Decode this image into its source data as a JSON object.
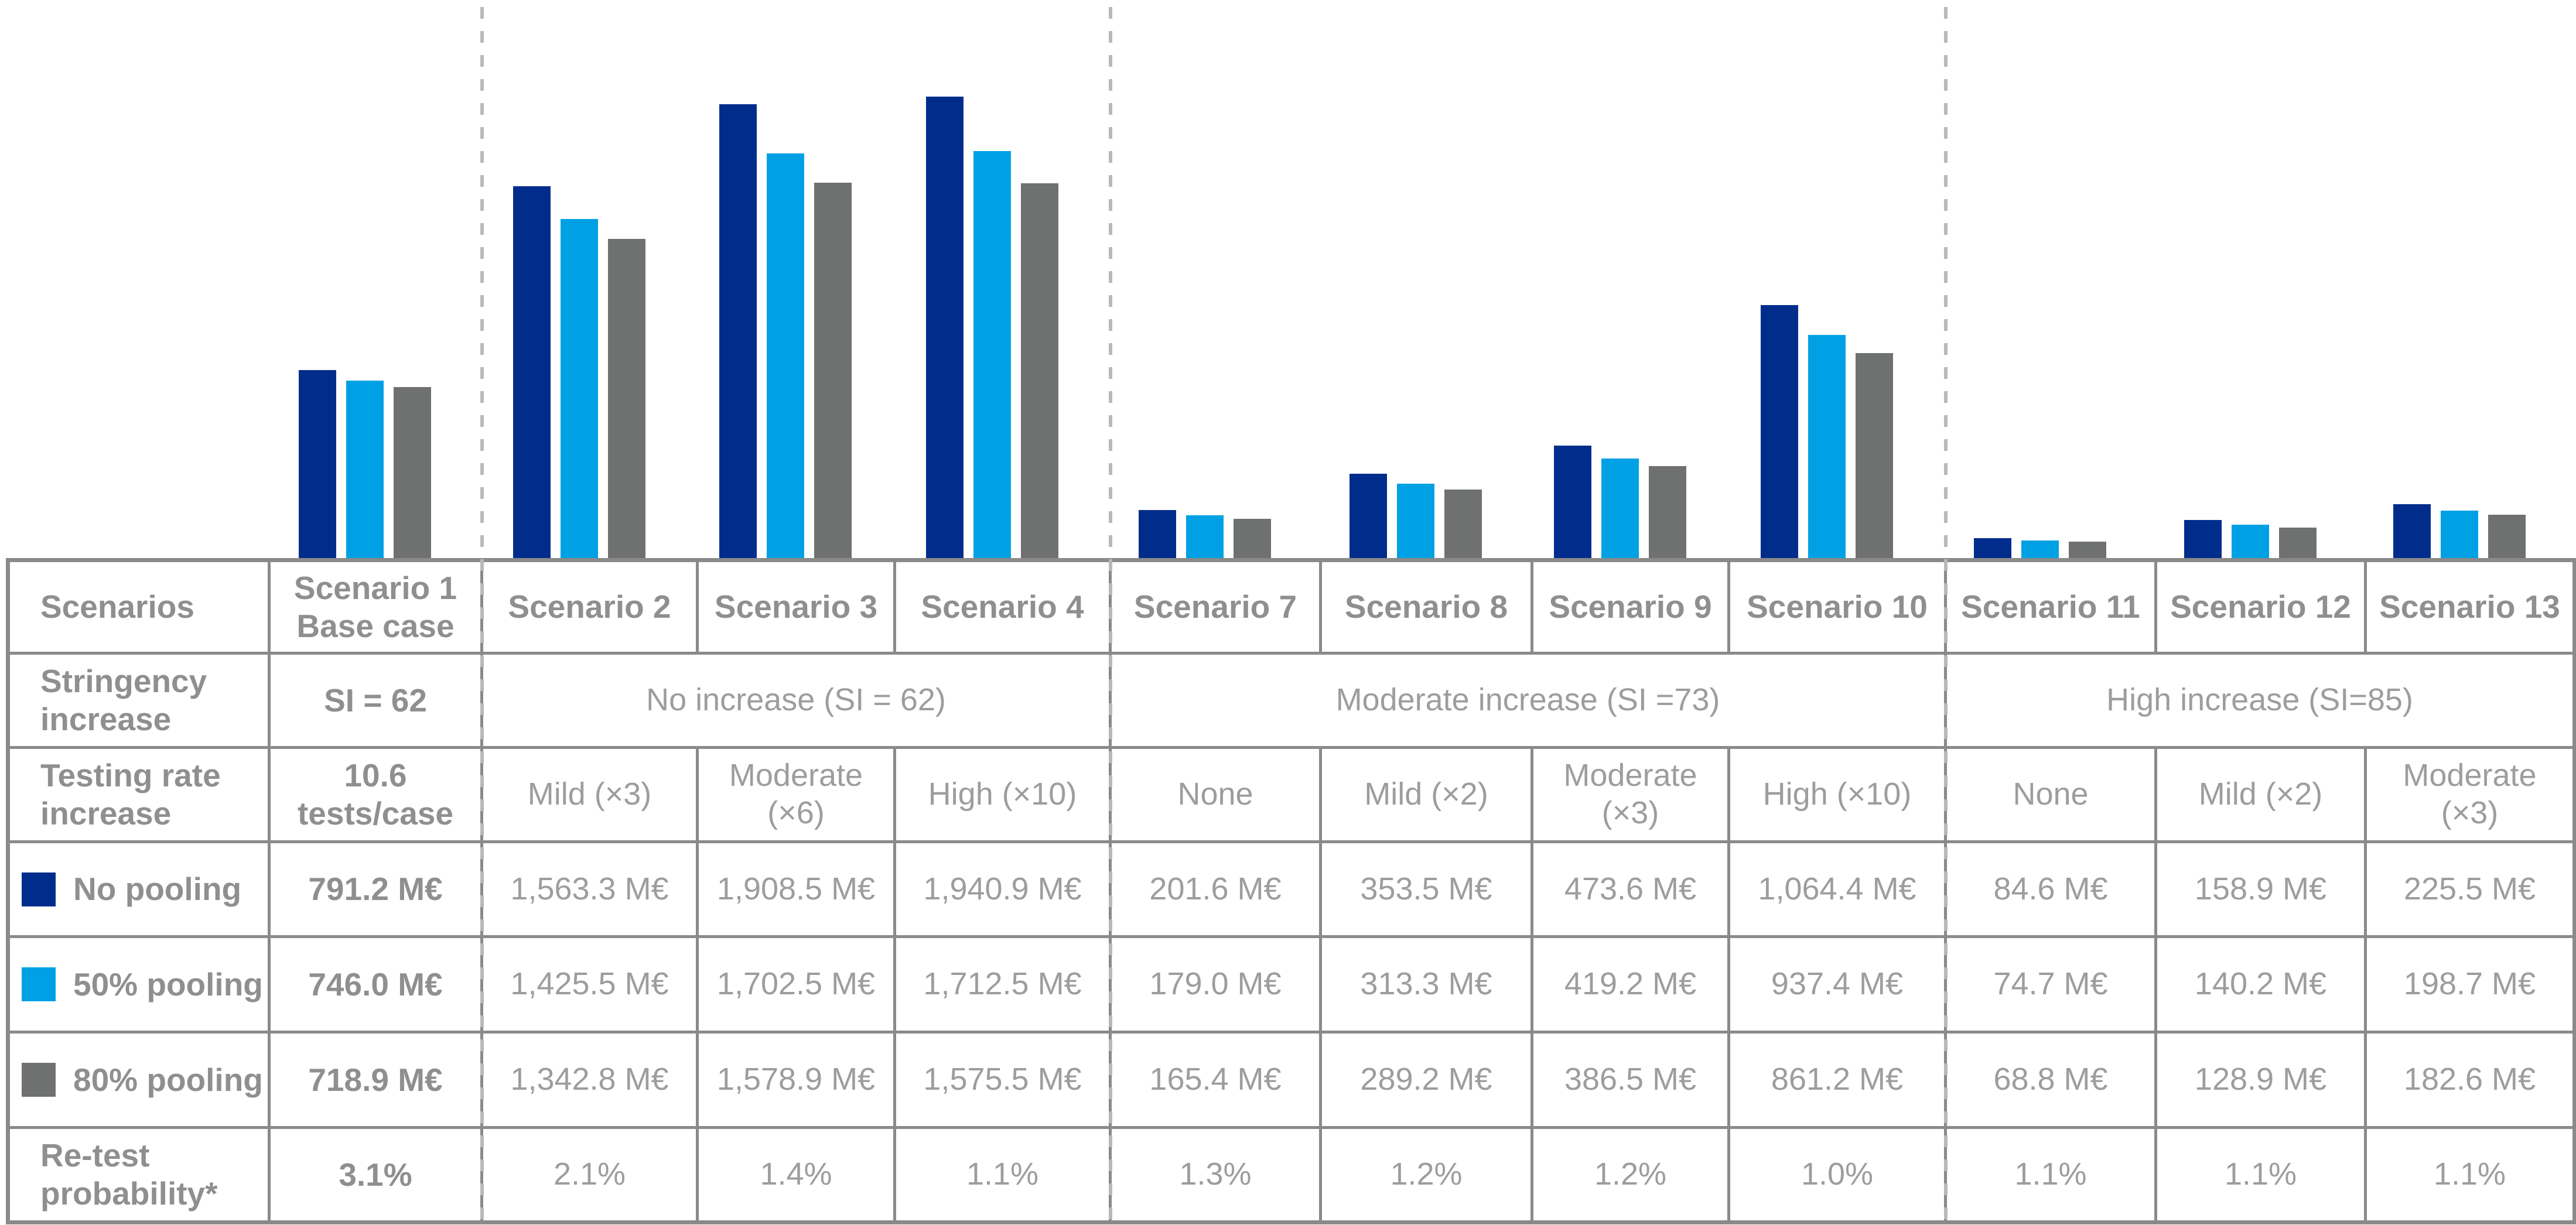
{
  "colors": {
    "navy": "#002D8C",
    "light_blue": "#00A1E4",
    "gray": "#6E7170",
    "grid_line": "#8A8A8A",
    "dashed_separator": "#B9B9B9",
    "text_bold": "#8F8F8F",
    "text_regular": "#9D9D9D"
  },
  "chart_data": {
    "type": "bar",
    "title": "",
    "xlabel": "",
    "ylabel": "",
    "unit": "M€",
    "axes_hidden": true,
    "grid": false,
    "legend_position": "table-left-column",
    "ylim": [
      0,
      1940.9
    ],
    "categories": [
      "Scenario 1",
      "Scenario 2",
      "Scenario 3",
      "Scenario 4",
      "Scenario 7",
      "Scenario 8",
      "Scenario 9",
      "Scenario 10",
      "Scenario 11",
      "Scenario 12",
      "Scenario 13"
    ],
    "series": [
      {
        "name": "No pooling",
        "color": "#002D8C",
        "values": [
          791.2,
          1563.3,
          1908.5,
          1940.9,
          201.6,
          353.5,
          473.6,
          1064.4,
          84.6,
          158.9,
          225.5
        ]
      },
      {
        "name": "50% pooling",
        "color": "#00A1E4",
        "values": [
          746.0,
          1425.5,
          1702.5,
          1712.5,
          179.0,
          313.3,
          419.2,
          937.4,
          74.7,
          140.2,
          198.7
        ]
      },
      {
        "name": "80% pooling",
        "color": "#6E7170",
        "values": [
          718.9,
          1342.8,
          1578.9,
          1575.5,
          165.4,
          289.2,
          386.5,
          861.2,
          68.8,
          128.9,
          182.6
        ]
      }
    ],
    "group_separators_after_categories": [
      "Scenario 1",
      "Scenario 4",
      "Scenario 10"
    ]
  },
  "table": {
    "rows": [
      {
        "name": "scenarios-header",
        "label": "Scenarios",
        "header": true,
        "cells": [
          {
            "text": "Scenario 1\nBase case",
            "bold": true
          },
          {
            "text": "Scenario 2",
            "bold": true
          },
          {
            "text": "Scenario 3",
            "bold": true
          },
          {
            "text": "Scenario 4",
            "bold": true
          },
          {
            "text": "Scenario 7",
            "bold": true
          },
          {
            "text": "Scenario 8",
            "bold": true
          },
          {
            "text": "Scenario 9",
            "bold": true
          },
          {
            "text": "Scenario 10",
            "bold": true
          },
          {
            "text": "Scenario 11",
            "bold": true
          },
          {
            "text": "Scenario 12",
            "bold": true
          },
          {
            "text": "Scenario 13",
            "bold": true
          }
        ]
      },
      {
        "name": "stringency-increase",
        "label": "Stringency\nincrease",
        "cells": [
          {
            "text": "SI = 62",
            "bold": true
          },
          {
            "text": "No increase (SI = 62)",
            "span": 3
          },
          {
            "text": "Moderate increase (SI =73)",
            "span": 4
          },
          {
            "text": "High increase (SI=85)",
            "span": 3
          }
        ]
      },
      {
        "name": "testing-rate-increase",
        "label": "Testing rate\nincrease",
        "cells": [
          {
            "text": "10.6\ntests/case",
            "bold": true
          },
          {
            "text": "Mild (×3)"
          },
          {
            "text": "Moderate\n(×6)"
          },
          {
            "text": "High (×10)"
          },
          {
            "text": "None"
          },
          {
            "text": "Mild (×2)"
          },
          {
            "text": "Moderate\n(×3)"
          },
          {
            "text": "High (×10)"
          },
          {
            "text": "None"
          },
          {
            "text": "Mild (×2)"
          },
          {
            "text": "Moderate\n(×3)"
          }
        ]
      },
      {
        "name": "no-pooling",
        "label": "No pooling",
        "swatch": "#002D8C",
        "cells": [
          {
            "text": "791.2 M€",
            "bold": true
          },
          {
            "text": "1,563.3 M€"
          },
          {
            "text": "1,908.5 M€"
          },
          {
            "text": "1,940.9 M€"
          },
          {
            "text": "201.6 M€"
          },
          {
            "text": "353.5 M€"
          },
          {
            "text": "473.6 M€"
          },
          {
            "text": "1,064.4 M€"
          },
          {
            "text": "84.6 M€"
          },
          {
            "text": "158.9 M€"
          },
          {
            "text": "225.5 M€"
          }
        ]
      },
      {
        "name": "50-percent-pooling",
        "label": "50% pooling",
        "swatch": "#00A1E4",
        "cells": [
          {
            "text": "746.0 M€",
            "bold": true
          },
          {
            "text": "1,425.5 M€"
          },
          {
            "text": "1,702.5 M€"
          },
          {
            "text": "1,712.5 M€"
          },
          {
            "text": "179.0 M€"
          },
          {
            "text": "313.3 M€"
          },
          {
            "text": "419.2 M€"
          },
          {
            "text": "937.4 M€"
          },
          {
            "text": "74.7 M€"
          },
          {
            "text": "140.2 M€"
          },
          {
            "text": "198.7 M€"
          }
        ]
      },
      {
        "name": "80-percent-pooling",
        "label": "80% pooling",
        "swatch": "#6E7170",
        "cells": [
          {
            "text": "718.9 M€",
            "bold": true
          },
          {
            "text": "1,342.8 M€"
          },
          {
            "text": "1,578.9 M€"
          },
          {
            "text": "1,575.5 M€"
          },
          {
            "text": "165.4 M€"
          },
          {
            "text": "289.2 M€"
          },
          {
            "text": "386.5 M€"
          },
          {
            "text": "861.2 M€"
          },
          {
            "text": "68.8 M€"
          },
          {
            "text": "128.9 M€"
          },
          {
            "text": "182.6 M€"
          }
        ]
      },
      {
        "name": "retest-probability",
        "label": "Re-test\nprobability*",
        "cells": [
          {
            "text": "3.1%",
            "bold": true
          },
          {
            "text": "2.1%"
          },
          {
            "text": "1.4%"
          },
          {
            "text": "1.1%"
          },
          {
            "text": "1.3%"
          },
          {
            "text": "1.2%"
          },
          {
            "text": "1.2%"
          },
          {
            "text": "1.0%"
          },
          {
            "text": "1.1%"
          },
          {
            "text": "1.1%"
          },
          {
            "text": "1.1%"
          }
        ]
      }
    ]
  }
}
